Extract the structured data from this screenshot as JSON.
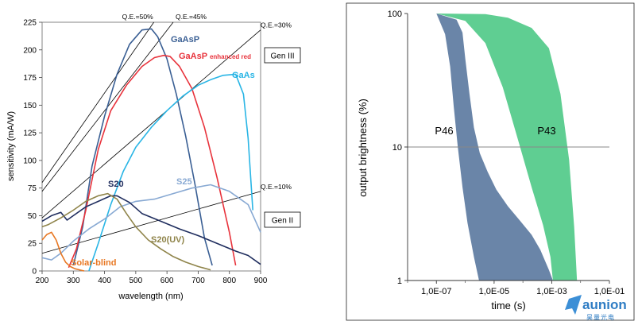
{
  "chart_data": [
    {
      "type": "line",
      "title": "",
      "xlabel": "wavelength (nm)",
      "ylabel": "sensitivity (mA/W)",
      "xlim": [
        200,
        900
      ],
      "ylim": [
        0,
        225
      ],
      "xticks": [
        200,
        300,
        400,
        500,
        600,
        700,
        800,
        900
      ],
      "yticks": [
        0,
        25,
        50,
        75,
        100,
        125,
        150,
        175,
        200,
        225
      ],
      "grid": false,
      "series": [
        {
          "name": "GaAsP",
          "color": "#3a5f94",
          "label_color": "#3a5f94",
          "x": [
            300,
            330,
            360,
            400,
            440,
            480,
            520,
            550,
            570,
            600,
            630,
            660,
            690,
            720,
            745
          ],
          "y": [
            5,
            40,
            95,
            140,
            178,
            205,
            218,
            219,
            212,
            192,
            160,
            122,
            78,
            30,
            5
          ]
        },
        {
          "name": "GaAsP enhanced red",
          "color": "#e8333c",
          "label_color": "#e8333c",
          "x": [
            285,
            310,
            340,
            380,
            420,
            470,
            520,
            560,
            590,
            610,
            640,
            680,
            720,
            760,
            800,
            820
          ],
          "y": [
            3,
            20,
            55,
            110,
            145,
            168,
            185,
            193,
            195,
            194,
            185,
            165,
            130,
            85,
            35,
            5
          ]
        },
        {
          "name": "GaAs",
          "color": "#29b5e5",
          "label_color": "#29b5e5",
          "x": [
            350,
            380,
            420,
            460,
            500,
            550,
            600,
            650,
            700,
            740,
            780,
            820,
            845,
            860,
            875
          ],
          "y": [
            0,
            25,
            60,
            90,
            112,
            130,
            145,
            158,
            168,
            173,
            177,
            178,
            160,
            120,
            55
          ]
        },
        {
          "name": "S25",
          "color": "#88a9d3",
          "label_color": "#88a9d3",
          "x": [
            200,
            230,
            260,
            300,
            350,
            400,
            450,
            500,
            560,
            620,
            680,
            740,
            800,
            860,
            900
          ],
          "y": [
            12,
            10,
            16,
            27,
            38,
            47,
            58,
            63,
            65,
            70,
            75,
            78,
            72,
            60,
            35
          ]
        },
        {
          "name": "S20",
          "color": "#1f2d5e",
          "label_color": "#1f2d5e",
          "x": [
            200,
            230,
            260,
            280,
            300,
            340,
            380,
            420,
            440,
            480,
            520,
            580,
            640,
            700,
            760,
            820,
            860,
            900
          ],
          "y": [
            45,
            50,
            53,
            46,
            50,
            58,
            63,
            68,
            68,
            62,
            52,
            45,
            38,
            32,
            25,
            18,
            14,
            6
          ]
        },
        {
          "name": "S20(UV)",
          "color": "#8f844a",
          "label_color": "#8f844a",
          "x": [
            200,
            220,
            260,
            300,
            340,
            380,
            410,
            440,
            470,
            500,
            540,
            580,
            620,
            660,
            700,
            740
          ],
          "y": [
            40,
            42,
            48,
            55,
            63,
            68,
            70,
            65,
            52,
            40,
            28,
            20,
            13,
            8,
            4,
            1
          ]
        },
        {
          "name": "Solar-blind",
          "color": "#e87722",
          "label_color": "#e87722",
          "x": [
            200,
            215,
            230,
            245,
            260,
            275,
            290,
            305,
            320,
            335
          ],
          "y": [
            28,
            33,
            35,
            28,
            16,
            8,
            4,
            2,
            1,
            0
          ]
        }
      ],
      "reference_lines": [
        {
          "label": "Q.E.=50%",
          "x": [
            200,
            558
          ],
          "y": [
            80,
            225
          ]
        },
        {
          "label": "Q.E.=45%",
          "x": [
            200,
            620
          ],
          "y": [
            72,
            225
          ]
        },
        {
          "label": "Q.E.=30%",
          "x": [
            200,
            900
          ],
          "y": [
            48,
            218
          ]
        },
        {
          "label": "Q.E.=10%",
          "x": [
            200,
            900
          ],
          "y": [
            16,
            72
          ]
        }
      ],
      "annotations": [
        "Gen III",
        "Gen II"
      ]
    },
    {
      "type": "area",
      "title": "",
      "xlabel": "time (s)",
      "ylabel": "output brightness (%)",
      "x_scale": "log",
      "y_scale": "log",
      "xlim": [
        1e-08,
        0.1
      ],
      "ylim": [
        1,
        100
      ],
      "xtick_labels": [
        "1,0E-07",
        "1,0E-05",
        "1,0E-03",
        "1,0E-01"
      ],
      "xtick_values": [
        1e-07,
        1e-05,
        0.001,
        0.1
      ],
      "ytick_labels": [
        "1",
        "10",
        "100"
      ],
      "ytick_values": [
        1,
        10,
        100
      ],
      "reference_line_y": 10,
      "series": [
        {
          "name": "P43",
          "color": "#5fce92",
          "upper": {
            "x": [
              1e-07,
              5e-06,
              3e-05,
              0.0002,
              0.0008,
              0.002,
              0.004,
              0.006,
              0.0075
            ],
            "y": [
              100,
              99,
              93,
              78,
              55,
              25,
              8,
              2.5,
              1
            ]
          },
          "lower": {
            "x": [
              1e-07,
              1e-06,
              5e-06,
              2e-05,
              8e-05,
              0.0002,
              0.0005,
              0.0009,
              0.0011
            ],
            "y": [
              100,
              88,
              60,
              28,
              10,
              5,
              2.6,
              1.5,
              1
            ]
          }
        },
        {
          "name": "P46",
          "color": "#6a85a8",
          "upper": {
            "x": [
              1e-07,
              5e-07,
              8e-07,
              1e-06,
              1.4e-06,
              2e-06,
              3.2e-06,
              6e-06,
              1.2e-05,
              3e-05,
              8e-05,
              0.0002,
              0.0004,
              0.0008,
              0.0011
            ],
            "y": [
              100,
              90,
              72,
              46,
              25,
              14,
              9,
              6.5,
              4.8,
              3.6,
              2.8,
              2.2,
              1.7,
              1.2,
              1
            ]
          },
          "lower": {
            "x": [
              1e-07,
              2e-07,
              3e-07,
              4e-07,
              5.5e-07,
              8e-07,
              1.2e-06,
              2e-06,
              3e-06
            ],
            "y": [
              100,
              70,
              40,
              20,
              10,
              5,
              2.7,
              1.5,
              1
            ]
          }
        }
      ]
    }
  ],
  "logo": {
    "text": "aunion",
    "subtext": "昊量光电"
  }
}
